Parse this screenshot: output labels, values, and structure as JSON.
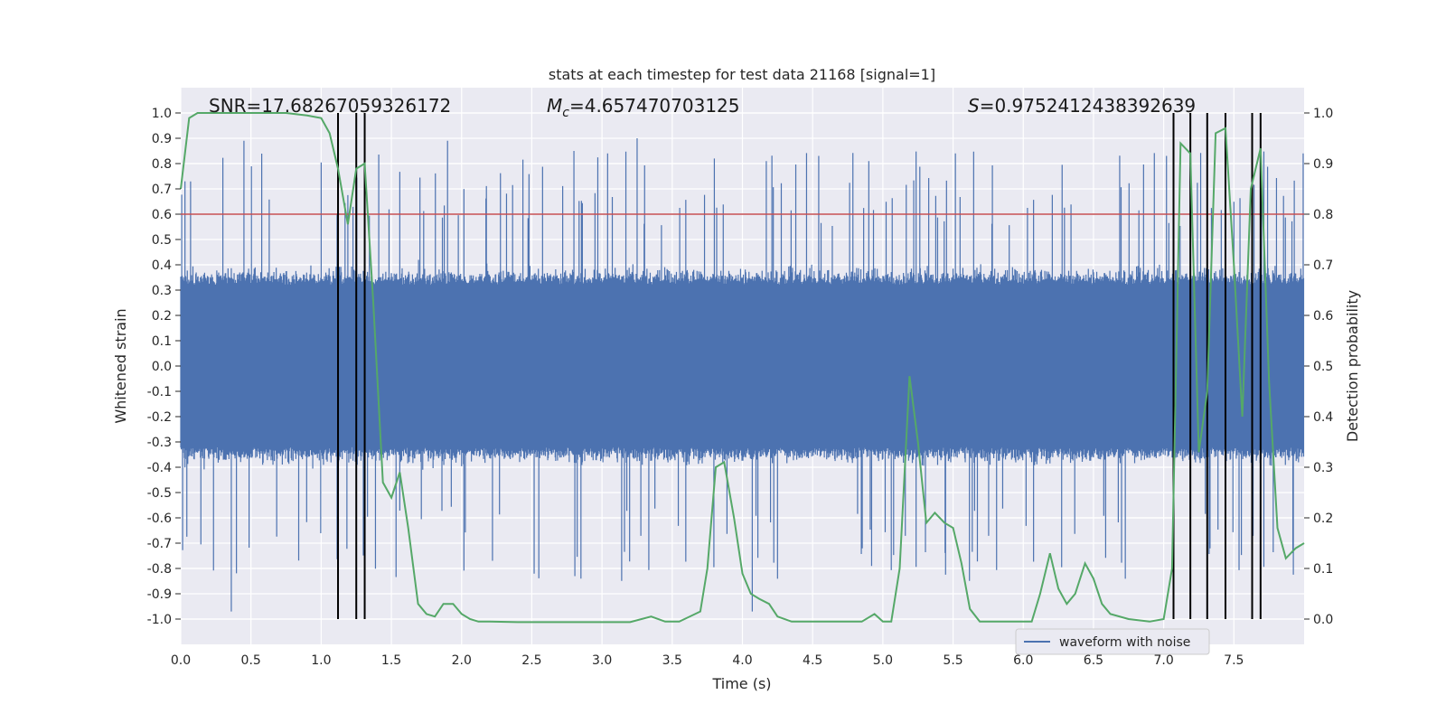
{
  "chart_data": {
    "type": "line",
    "title": "stats at each timestep for test data 21168 [signal=1]",
    "xlabel": "Time (s)",
    "ylabel": "Whitened strain",
    "y2label": "Detection probability",
    "xlim": [
      0.0,
      8.0
    ],
    "ylim": [
      -1.1,
      1.1
    ],
    "y2lim": [
      -0.05,
      1.05
    ],
    "xticks": [
      "0.0",
      "0.5",
      "1.0",
      "1.5",
      "2.0",
      "2.5",
      "3.0",
      "3.5",
      "4.0",
      "4.5",
      "5.0",
      "5.5",
      "6.0",
      "6.5",
      "7.0",
      "7.5"
    ],
    "yticks": [
      "1.0",
      "0.9",
      "0.8",
      "0.7",
      "0.6",
      "0.5",
      "0.4",
      "0.3",
      "0.2",
      "0.1",
      "0.0",
      "-0.1",
      "-0.2",
      "-0.3",
      "-0.4",
      "-0.5",
      "-0.6",
      "-0.7",
      "-0.8",
      "-0.9",
      "-1.0"
    ],
    "y2ticks": [
      "1.0",
      "0.9",
      "0.8",
      "0.7",
      "0.6",
      "0.5",
      "0.4",
      "0.3",
      "0.2",
      "0.1",
      "0.0"
    ],
    "threshold": 0.8,
    "annotations": {
      "snr": "SNR=17.68267059326172",
      "mc_prefix": "M",
      "mc_sub": "c",
      "mc_value": "=4.657470703125",
      "s_prefix": "S",
      "s_value": "=0.9752412438392639"
    },
    "detections": [
      1.12,
      1.25,
      1.31,
      7.07,
      7.19,
      7.31,
      7.44,
      7.63,
      7.69
    ],
    "legend": {
      "label": "waveform with noise",
      "position": "lower-right"
    },
    "series": [
      {
        "name": "Detection probability",
        "axis": "right",
        "color": "#55a868",
        "x": [
          0.0,
          0.06,
          0.12,
          0.25,
          0.5,
          0.75,
          0.9,
          1.0,
          1.06,
          1.12,
          1.19,
          1.25,
          1.31,
          1.37,
          1.44,
          1.5,
          1.56,
          1.62,
          1.69,
          1.75,
          1.81,
          1.87,
          1.94,
          2.0,
          2.06,
          2.12,
          2.2,
          2.4,
          2.6,
          2.8,
          3.0,
          3.2,
          3.35,
          3.45,
          3.55,
          3.7,
          3.75,
          3.81,
          3.87,
          3.94,
          4.0,
          4.06,
          4.12,
          4.19,
          4.25,
          4.35,
          4.5,
          4.7,
          4.85,
          4.94,
          5.0,
          5.06,
          5.12,
          5.19,
          5.25,
          5.31,
          5.37,
          5.44,
          5.5,
          5.56,
          5.62,
          5.69,
          5.75,
          5.9,
          6.06,
          6.12,
          6.19,
          6.25,
          6.31,
          6.37,
          6.44,
          6.5,
          6.56,
          6.62,
          6.75,
          6.9,
          7.0,
          7.06,
          7.12,
          7.19,
          7.25,
          7.31,
          7.37,
          7.44,
          7.5,
          7.56,
          7.62,
          7.69,
          7.75,
          7.81,
          7.87,
          7.94,
          8.0
        ],
        "values": [
          0.85,
          0.99,
          1.0,
          1.0,
          1.0,
          1.0,
          0.995,
          0.99,
          0.96,
          0.89,
          0.78,
          0.89,
          0.9,
          0.63,
          0.27,
          0.24,
          0.29,
          0.18,
          0.03,
          0.01,
          0.005,
          0.03,
          0.03,
          0.01,
          0.0,
          -0.005,
          -0.005,
          -0.006,
          -0.006,
          -0.006,
          -0.006,
          -0.006,
          0.005,
          -0.005,
          -0.005,
          0.015,
          0.1,
          0.3,
          0.31,
          0.2,
          0.09,
          0.05,
          0.04,
          0.03,
          0.005,
          -0.005,
          -0.005,
          -0.005,
          -0.005,
          0.01,
          -0.005,
          -0.005,
          0.1,
          0.48,
          0.35,
          0.19,
          0.21,
          0.19,
          0.18,
          0.11,
          0.02,
          -0.005,
          -0.005,
          -0.005,
          -0.005,
          0.05,
          0.13,
          0.06,
          0.03,
          0.05,
          0.11,
          0.08,
          0.03,
          0.01,
          0.0,
          -0.005,
          0.0,
          0.1,
          0.94,
          0.92,
          0.33,
          0.45,
          0.96,
          0.97,
          0.7,
          0.4,
          0.85,
          0.93,
          0.47,
          0.18,
          0.12,
          0.14,
          0.15
        ]
      },
      {
        "name": "waveform with noise",
        "axis": "left",
        "color": "#4c72b0",
        "envelope": "dense noise, approx -0.4 to 0.4 with sparse spikes to about +0.89 and -0.97"
      }
    ]
  }
}
